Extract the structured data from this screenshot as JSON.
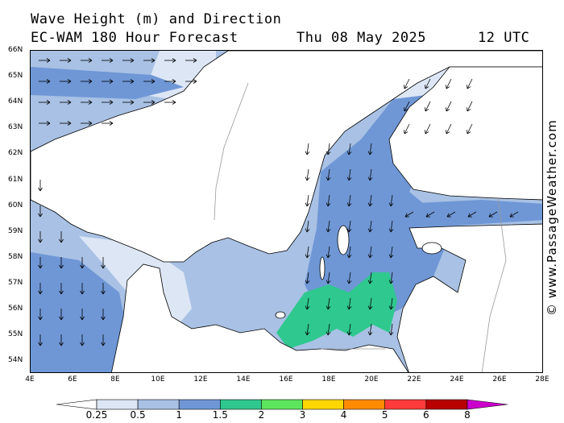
{
  "header": {
    "title_line1": "Wave Height (m) and Direction",
    "title_line2": "EC-WAM 180 Hour Forecast",
    "date": "Thu 08 May 2025",
    "time": "12 UTC"
  },
  "watermark": "© www.PassageWeather.com",
  "map": {
    "lat_labels": [
      "66N",
      "65N",
      "64N",
      "63N",
      "62N",
      "61N",
      "60N",
      "59N",
      "58N",
      "57N",
      "56N",
      "55N",
      "54N"
    ],
    "lon_labels": [
      "4E",
      "6E",
      "8E",
      "10E",
      "12E",
      "14E",
      "16E",
      "18E",
      "20E",
      "22E",
      "24E",
      "26E",
      "28E"
    ],
    "colors": {
      "land": "#ffffff",
      "coast": "#000000",
      "border": "#999999",
      "band_0_025": "#ffffff",
      "band_025_05": "#dde6f5",
      "band_05_1": "#a8c1e4",
      "band_1_15": "#6f97d6",
      "band_15_2": "#2fc88f"
    }
  },
  "legend": {
    "labels": [
      "0.25",
      "0.5",
      "1",
      "1.5",
      "2",
      "3",
      "4",
      "5",
      "6",
      "8"
    ],
    "colors": [
      "#dde6f5",
      "#a8c1e4",
      "#6f97d6",
      "#2fc88f",
      "#5de65d",
      "#ffd700",
      "#ff8c00",
      "#ff3b3b",
      "#b80000",
      "#cc00cc"
    ]
  }
}
